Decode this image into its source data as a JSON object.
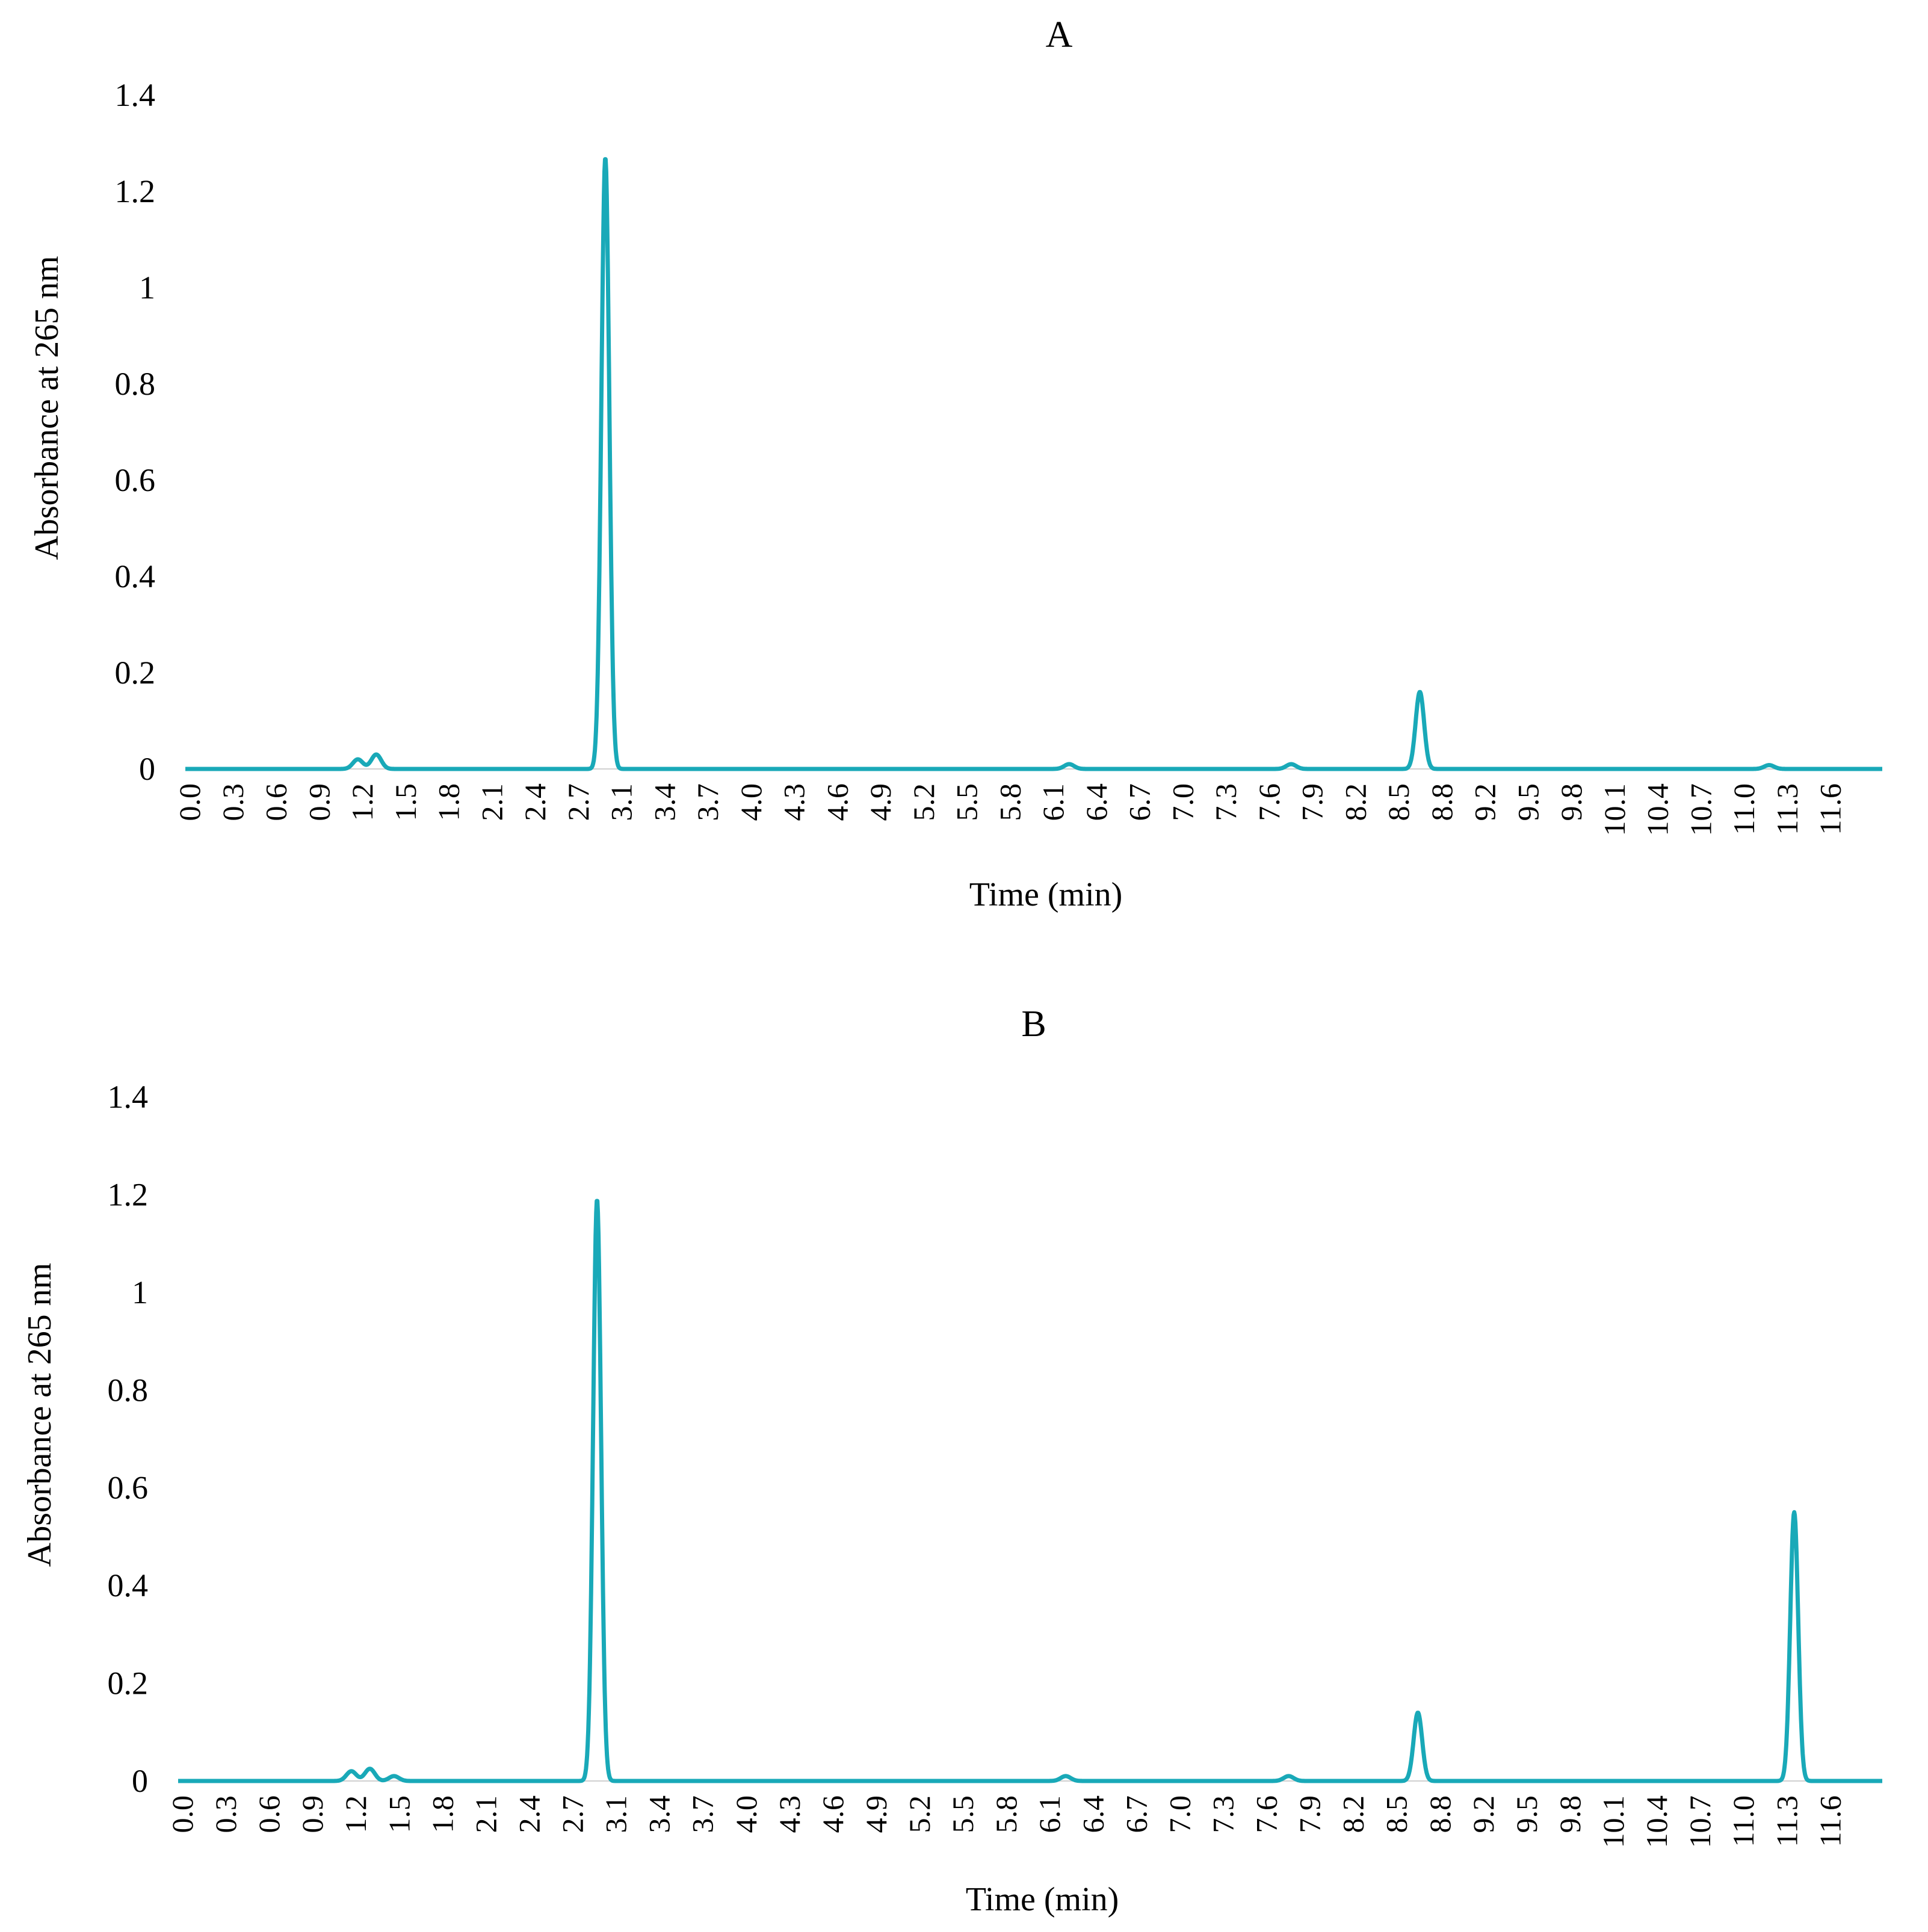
{
  "chart_data": [
    {
      "type": "line",
      "title": "A",
      "xlabel": "Time (min)",
      "ylabel": "Absorbance at 265 nm",
      "xlim": [
        0,
        12
      ],
      "ylim": [
        0,
        1.4
      ],
      "yticks": [
        "0",
        "0.2",
        "0.4",
        "0.6",
        "0.8",
        "1",
        "1.2",
        "1.4"
      ],
      "xticks": [
        "0.0",
        "0.3",
        "0.6",
        "0.9",
        "1.2",
        "1.5",
        "1.8",
        "2.1",
        "2.4",
        "2.7",
        "3.1",
        "3.4",
        "3.7",
        "4.0",
        "4.3",
        "4.6",
        "4.9",
        "5.2",
        "5.5",
        "5.8",
        "6.1",
        "6.4",
        "6.7",
        "7.0",
        "7.3",
        "7.6",
        "7.9",
        "8.2",
        "8.5",
        "8.8",
        "9.2",
        "9.5",
        "9.8",
        "10.1",
        "10.4",
        "10.7",
        "11.0",
        "11.3",
        "11.6"
      ],
      "grid": false,
      "color": "#19a9b8",
      "peaks": [
        {
          "x": 1.22,
          "y": 0.02
        },
        {
          "x": 1.35,
          "y": 0.03
        },
        {
          "x": 2.97,
          "y": 1.27
        },
        {
          "x": 6.25,
          "y": 0.01
        },
        {
          "x": 7.82,
          "y": 0.01
        },
        {
          "x": 8.73,
          "y": 0.16
        },
        {
          "x": 11.2,
          "y": 0.008
        }
      ]
    },
    {
      "type": "line",
      "title": "B",
      "xlabel": "Time (min)",
      "ylabel": "Absorbance at 265 nm",
      "xlim": [
        0,
        12
      ],
      "ylim": [
        0,
        1.4
      ],
      "yticks": [
        "0",
        "0.2",
        "0.4",
        "0.6",
        "0.8",
        "1",
        "1.2",
        "1.4"
      ],
      "xticks": [
        "0.0",
        "0.3",
        "0.6",
        "0.9",
        "1.2",
        "1.5",
        "1.8",
        "2.1",
        "2.4",
        "2.7",
        "3.1",
        "3.4",
        "3.7",
        "4.0",
        "4.3",
        "4.6",
        "4.9",
        "5.2",
        "5.5",
        "5.8",
        "6.1",
        "6.4",
        "6.7",
        "7.0",
        "7.3",
        "7.6",
        "7.9",
        "8.2",
        "8.5",
        "8.8",
        "9.2",
        "9.5",
        "9.8",
        "10.1",
        "10.4",
        "10.7",
        "11.0",
        "11.3",
        "11.6"
      ],
      "grid": false,
      "color": "#19a9b8",
      "peaks": [
        {
          "x": 1.22,
          "y": 0.02
        },
        {
          "x": 1.35,
          "y": 0.025
        },
        {
          "x": 1.52,
          "y": 0.01
        },
        {
          "x": 2.95,
          "y": 1.19
        },
        {
          "x": 6.25,
          "y": 0.01
        },
        {
          "x": 7.82,
          "y": 0.01
        },
        {
          "x": 8.73,
          "y": 0.14
        },
        {
          "x": 11.38,
          "y": 0.55
        }
      ]
    }
  ]
}
